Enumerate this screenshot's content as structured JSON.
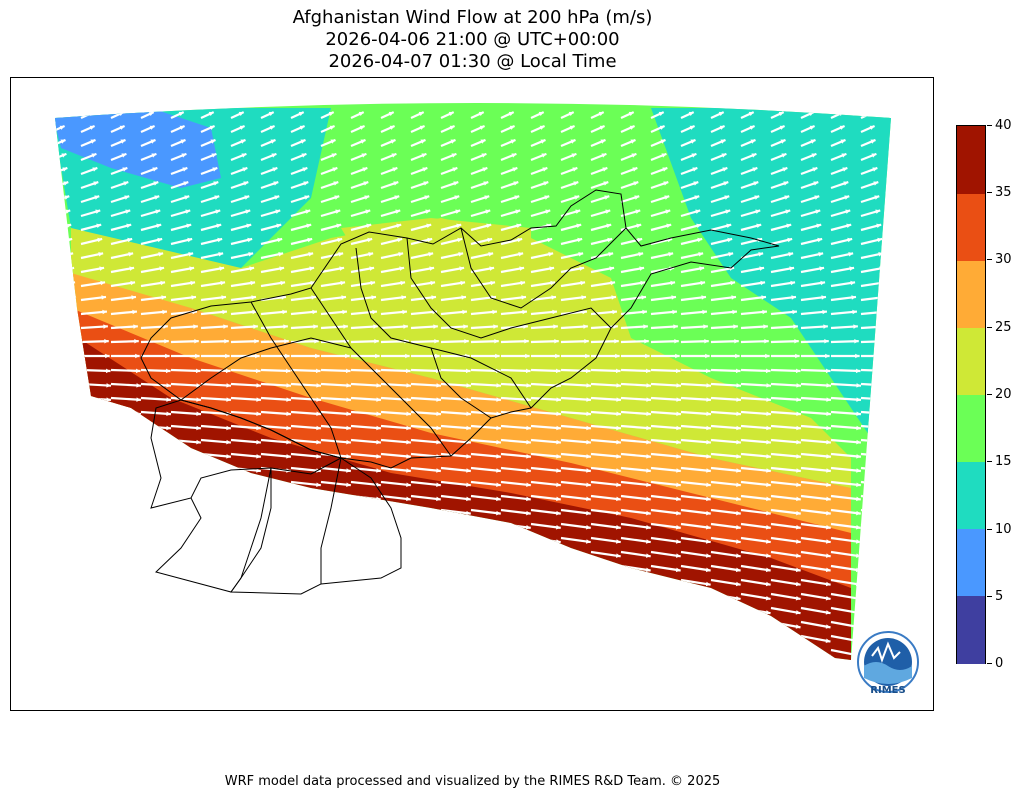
{
  "title": {
    "line1": "Afghanistan Wind Flow at 200 hPa (m/s)",
    "line2": "2026-04-06 21:00 @ UTC+00:00",
    "line3": "2026-04-07 01:30 @ Local Time"
  },
  "colorbar": {
    "ticks": [
      "0",
      "5",
      "10",
      "15",
      "20",
      "25",
      "30",
      "35",
      "40"
    ],
    "levels": [
      {
        "range": "0-5",
        "color": "#3f3fa0"
      },
      {
        "range": "5-10",
        "color": "#4a98ff"
      },
      {
        "range": "10-15",
        "color": "#1fdcc0"
      },
      {
        "range": "15-20",
        "color": "#6bff56"
      },
      {
        "range": "20-25",
        "color": "#cfe836"
      },
      {
        "range": "25-30",
        "color": "#ffab36"
      },
      {
        "range": "30-35",
        "color": "#ea4f14"
      },
      {
        "range": "35-40",
        "color": "#a01400"
      }
    ]
  },
  "logo": {
    "text": "RIMES"
  },
  "footer": "WRF model data processed and visualized by the RIMES R&D Team. © 2025"
}
